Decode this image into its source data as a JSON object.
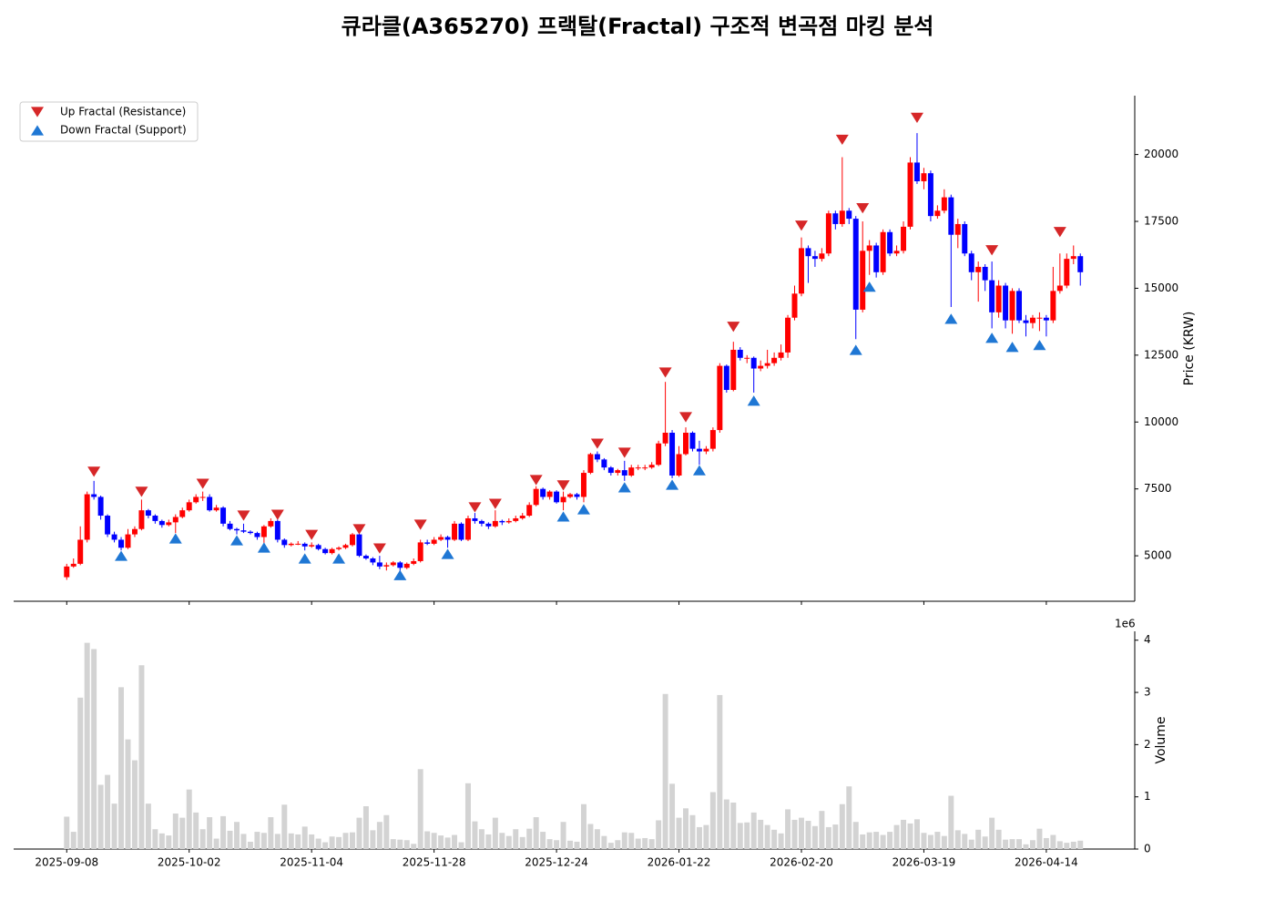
{
  "chart_data": [
    {
      "type": "candlestick",
      "title": "큐라클(A365270) 프랙탈(Fractal) 구조적 변곡점 마킹 분석",
      "ylabel": "Price (KRW)",
      "xlim": [
        -7.8,
        157
      ],
      "ylim": [
        3300,
        22200
      ],
      "yticks": [
        5000,
        7500,
        10000,
        12500,
        15000,
        17500,
        20000
      ],
      "up_color": "#ff0000",
      "down_color": "#0000ff",
      "legend": "upper left",
      "open": [
        4200,
        4600,
        4700,
        5600,
        7300,
        7200,
        6500,
        5800,
        5600,
        5300,
        5800,
        6000,
        6700,
        6500,
        6300,
        6150,
        6250,
        6450,
        6700,
        7000,
        7200,
        7200,
        6700,
        6800,
        6200,
        6000,
        5950,
        5900,
        5850,
        5700,
        6100,
        6300,
        5600,
        5400,
        5450,
        5450,
        5350,
        5400,
        5250,
        5100,
        5250,
        5300,
        5400,
        5800,
        5000,
        4900,
        4750,
        4600,
        4650,
        4750,
        4550,
        4700,
        4800,
        5500,
        5450,
        5600,
        5700,
        5600,
        6200,
        5600,
        6400,
        6300,
        6200,
        6100,
        6300,
        6250,
        6300,
        6400,
        6500,
        6900,
        7500,
        7200,
        7400,
        7000,
        7200,
        7300,
        7200,
        8100,
        8800,
        8600,
        8300,
        8100,
        8200,
        8000,
        8300,
        8300,
        8300,
        8400,
        9200,
        9600,
        8000,
        8800,
        9600,
        9000,
        8900,
        9000,
        9700,
        12100,
        11200,
        12700,
        12400,
        12400,
        12000,
        12100,
        12200,
        12400,
        12600,
        13900,
        14800,
        16500,
        16200,
        16100,
        16300,
        17800,
        17400,
        17900,
        17600,
        14200,
        16400,
        16600,
        15600,
        17100,
        16300,
        16400,
        17300,
        19700,
        19000,
        19300,
        17700,
        17900,
        18400,
        17000,
        17400,
        16300,
        15600,
        15800,
        15300,
        14100,
        15100,
        13800,
        14900,
        13800,
        13700,
        13900,
        13900,
        13800,
        14900,
        15100,
        16100,
        16200
      ],
      "high": [
        4700,
        4900,
        6100,
        7400,
        7800,
        7250,
        6550,
        5900,
        5700,
        6000,
        6100,
        7100,
        6750,
        6550,
        6350,
        6350,
        6550,
        6800,
        7100,
        7300,
        7400,
        7300,
        6900,
        6850,
        6300,
        6050,
        6200,
        5950,
        5900,
        6150,
        6400,
        6350,
        5650,
        5500,
        5550,
        5500,
        5500,
        5450,
        5300,
        5300,
        5350,
        5450,
        5850,
        5850,
        5050,
        4950,
        5000,
        4750,
        4800,
        4800,
        4750,
        4900,
        5600,
        5600,
        5700,
        5800,
        5750,
        6300,
        6250,
        6500,
        6600,
        6350,
        6250,
        6700,
        6350,
        6400,
        6500,
        6600,
        7000,
        7600,
        7550,
        7450,
        7450,
        7400,
        7350,
        7350,
        8200,
        8850,
        8900,
        8650,
        8350,
        8250,
        8550,
        8400,
        8400,
        8400,
        8500,
        9300,
        11500,
        9700,
        9100,
        9800,
        9650,
        9300,
        9100,
        9800,
        12200,
        12150,
        13000,
        12800,
        12500,
        12450,
        12300,
        12700,
        12600,
        12900,
        14000,
        15100,
        16900,
        16600,
        16400,
        16500,
        17900,
        17900,
        19900,
        18000,
        17700,
        17500,
        16800,
        16700,
        17200,
        17200,
        16600,
        17500,
        19900,
        20800,
        19500,
        19400,
        18100,
        18700,
        18500,
        17600,
        17500,
        16400,
        16000,
        15900,
        16000,
        15300,
        15200,
        15000,
        15000,
        14000,
        14000,
        14100,
        14000,
        15800,
        16300,
        16300,
        16600,
        16300
      ],
      "low": [
        4100,
        4550,
        4650,
        5500,
        7100,
        6350,
        5700,
        5500,
        5200,
        5250,
        5700,
        5950,
        6400,
        6200,
        6050,
        6100,
        5850,
        6400,
        6650,
        6950,
        7050,
        6650,
        6650,
        6100,
        5950,
        5800,
        5850,
        5800,
        5600,
        5450,
        6050,
        5500,
        5300,
        5350,
        5400,
        5200,
        5300,
        5200,
        5050,
        5050,
        5200,
        5250,
        5350,
        4950,
        4850,
        4650,
        4500,
        4450,
        4600,
        4400,
        4500,
        4650,
        4750,
        5400,
        5400,
        5550,
        5300,
        5550,
        5550,
        5550,
        6200,
        6100,
        6000,
        6050,
        6150,
        6200,
        6250,
        6350,
        6450,
        6850,
        7100,
        7100,
        6950,
        6700,
        7150,
        7100,
        7000,
        8050,
        8500,
        8200,
        8000,
        8000,
        7800,
        7950,
        8200,
        8200,
        8250,
        8350,
        9100,
        7900,
        7950,
        8750,
        8900,
        8400,
        8800,
        8900,
        9600,
        11100,
        11150,
        12300,
        12200,
        11100,
        11900,
        12000,
        12100,
        12300,
        12400,
        13800,
        14700,
        15200,
        15800,
        16000,
        16200,
        17200,
        17300,
        17400,
        13100,
        14100,
        15500,
        15400,
        15500,
        16200,
        16200,
        16300,
        17200,
        18900,
        18700,
        17500,
        17600,
        17800,
        14300,
        16500,
        16200,
        15300,
        14500,
        14900,
        13500,
        13900,
        13500,
        13300,
        13700,
        13200,
        13500,
        13400,
        13200,
        13700,
        14800,
        15000,
        15900,
        15100
      ],
      "close": [
        4600,
        4700,
        5600,
        7300,
        7200,
        6500,
        5800,
        5600,
        5300,
        5800,
        6000,
        6700,
        6500,
        6300,
        6150,
        6250,
        6450,
        6700,
        7000,
        7200,
        7200,
        6700,
        6800,
        6200,
        6000,
        5950,
        5900,
        5850,
        5700,
        6100,
        6300,
        5600,
        5400,
        5450,
        5450,
        5350,
        5400,
        5250,
        5100,
        5250,
        5300,
        5400,
        5800,
        5000,
        4900,
        4750,
        4600,
        4650,
        4750,
        4550,
        4700,
        4800,
        5500,
        5450,
        5600,
        5700,
        5600,
        6200,
        5600,
        6400,
        6300,
        6200,
        6100,
        6300,
        6250,
        6300,
        6400,
        6500,
        6900,
        7500,
        7200,
        7400,
        7000,
        7200,
        7300,
        7200,
        8100,
        8800,
        8600,
        8300,
        8100,
        8200,
        8000,
        8300,
        8300,
        8300,
        8400,
        9200,
        9600,
        8000,
        8800,
        9600,
        9000,
        8900,
        9000,
        9700,
        12100,
        11200,
        12700,
        12400,
        12400,
        12000,
        12100,
        12200,
        12400,
        12600,
        13900,
        14800,
        16500,
        16200,
        16100,
        16300,
        17800,
        17400,
        17900,
        17600,
        14200,
        16400,
        16600,
        15600,
        17100,
        16300,
        16400,
        17300,
        19700,
        19000,
        19300,
        17700,
        17900,
        18400,
        17000,
        17400,
        16300,
        15600,
        15800,
        15300,
        14100,
        15100,
        13800,
        14900,
        13800,
        13700,
        13900,
        13900,
        13800,
        14900,
        15100,
        16100,
        16200,
        15600
      ],
      "series": [
        {
          "name": "Up Fractal (Resistance)",
          "color": "#d62728",
          "marker": "down",
          "x": [
            4,
            11,
            20,
            26,
            31,
            36,
            43,
            46,
            52,
            60,
            63,
            69,
            73,
            78,
            82,
            88,
            91,
            98,
            108,
            114,
            117,
            125,
            136,
            146
          ],
          "values": [
            8140,
            7390,
            7690,
            6500,
            6530,
            5780,
            5990,
            5270,
            6160,
            6810,
            6940,
            7830,
            7630,
            9190,
            8850,
            11850,
            10180,
            13560,
            17340,
            20550,
            17990,
            21370,
            16420,
            17100
          ]
        },
        {
          "name": "Down Fractal (Support)",
          "color": "#1f77d4",
          "marker": "up",
          "x": [
            8,
            16,
            25,
            29,
            35,
            40,
            49,
            56,
            73,
            76,
            82,
            89,
            93,
            101,
            116,
            118,
            130,
            136,
            139,
            143
          ],
          "values": [
            5000,
            5650,
            5580,
            5310,
            4900,
            4900,
            4280,
            5070,
            6470,
            6740,
            7560,
            7660,
            8200,
            10800,
            12700,
            15060,
            13860,
            13150,
            12810,
            12880
          ]
        }
      ]
    },
    {
      "type": "bar",
      "ylabel": "Volume",
      "offset_text": "1e6",
      "color": "#d3d3d3",
      "xlim": [
        -7.8,
        157
      ],
      "ylim": [
        0,
        4170000
      ],
      "yticks": [
        0,
        {
          "value": 1000000,
          "label": "1"
        },
        {
          "value": 2000000,
          "label": "2"
        },
        {
          "value": 3000000,
          "label": "3"
        },
        {
          "value": 4000000,
          "label": "4"
        }
      ],
      "xticks": [
        {
          "value": 0,
          "label": "2025-09-08"
        },
        {
          "value": 18,
          "label": "2025-10-02"
        },
        {
          "value": 36,
          "label": "2025-11-04"
        },
        {
          "value": 54,
          "label": "2025-11-28"
        },
        {
          "value": 72,
          "label": "2025-12-24"
        },
        {
          "value": 90,
          "label": "2026-01-22"
        },
        {
          "value": 108,
          "label": "2026-02-20"
        },
        {
          "value": 126,
          "label": "2026-03-19"
        },
        {
          "value": 144,
          "label": "2026-04-14"
        }
      ],
      "values": [
        620000,
        330000,
        2900000,
        3950000,
        3830000,
        1230000,
        1420000,
        870000,
        3100000,
        2100000,
        1700000,
        3520000,
        870000,
        380000,
        300000,
        260000,
        680000,
        600000,
        1140000,
        700000,
        380000,
        610000,
        200000,
        630000,
        350000,
        520000,
        290000,
        140000,
        330000,
        310000,
        610000,
        290000,
        850000,
        300000,
        280000,
        430000,
        280000,
        200000,
        130000,
        240000,
        230000,
        310000,
        320000,
        600000,
        820000,
        360000,
        520000,
        650000,
        190000,
        180000,
        170000,
        100000,
        1530000,
        340000,
        310000,
        260000,
        220000,
        270000,
        130000,
        1260000,
        530000,
        380000,
        280000,
        600000,
        310000,
        250000,
        380000,
        230000,
        390000,
        610000,
        330000,
        190000,
        170000,
        520000,
        160000,
        140000,
        860000,
        480000,
        380000,
        250000,
        120000,
        170000,
        320000,
        310000,
        200000,
        210000,
        190000,
        550000,
        2970000,
        1250000,
        600000,
        780000,
        650000,
        420000,
        460000,
        1090000,
        2950000,
        950000,
        890000,
        500000,
        510000,
        700000,
        560000,
        460000,
        370000,
        300000,
        760000,
        560000,
        600000,
        540000,
        440000,
        730000,
        420000,
        470000,
        860000,
        1200000,
        520000,
        280000,
        320000,
        330000,
        270000,
        330000,
        460000,
        560000,
        490000,
        570000,
        310000,
        270000,
        330000,
        250000,
        1020000,
        360000,
        290000,
        180000,
        370000,
        240000,
        600000,
        370000,
        180000,
        190000,
        190000,
        90000,
        170000,
        390000,
        210000,
        270000,
        150000,
        120000,
        140000,
        160000
      ]
    }
  ]
}
